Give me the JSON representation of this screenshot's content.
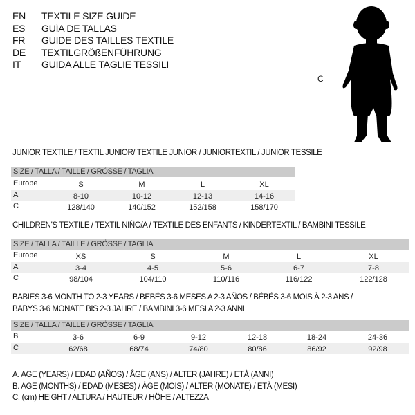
{
  "header": {
    "lines": [
      {
        "code": "EN",
        "text": "TEXTILE SIZE GUIDE"
      },
      {
        "code": "ES",
        "text": "GUÍA DE TALLAS"
      },
      {
        "code": "FR",
        "text": "GUIDE DES TAILLES TEXTILE"
      },
      {
        "code": "DE",
        "text": "TEXTILGRÖßENFÜHRUNG"
      },
      {
        "code": "IT",
        "text": "GUIDA ALLE TAGLIE TESSILI"
      }
    ]
  },
  "figure": {
    "label": "C",
    "icon": "child-silhouette"
  },
  "tables": [
    {
      "title": "JUNIOR TEXTILE / TEXTIL JUNIOR/ TEXTILE JUNIOR / JUNIORTEXTIL / JUNIOR TESSILE",
      "header": "SIZE / TALLA / TAILLE / GRÖSSE / TAGLIA",
      "rows": [
        {
          "label": "Europe",
          "values": [
            "S",
            "M",
            "L",
            "XL"
          ]
        },
        {
          "label": "A",
          "values": [
            "8-10",
            "10-12",
            "12-13",
            "14-16"
          ]
        },
        {
          "label": "C",
          "values": [
            "128/140",
            "140/152",
            "152/158",
            "158/170"
          ]
        }
      ]
    },
    {
      "title": "CHILDREN'S TEXTILE / TEXTIL NIÑO/A / TEXTILE DES ENFANTS / KINDERTEXTIL / BAMBINI TESSILE",
      "header": "SIZE / TALLA / TAILLE / GRÖSSE / TAGLIA",
      "rows": [
        {
          "label": "Europe",
          "values": [
            "XS",
            "S",
            "M",
            "L",
            "XL"
          ]
        },
        {
          "label": "A",
          "values": [
            "3-4",
            "4-5",
            "5-6",
            "6-7",
            "7-8"
          ]
        },
        {
          "label": "C",
          "values": [
            "98/104",
            "104/110",
            "110/116",
            "116/122",
            "122/128"
          ]
        }
      ]
    },
    {
      "title": "BABIES 3-6 MONTH TO 2-3 YEARS / BEBÉS 3-6 MESES A 2-3 AÑOS / BÉBÉS 3-6 MOIS À 2-3 ANS /",
      "title2": "BABYS 3-6 MONATE BIS 2-3 JAHRE / BAMBINI 3-6 MESI A 2-3 ANNI",
      "header": "SIZE / TALLA / TAILLE / GRÖSSE / TAGLIA",
      "rows": [
        {
          "label": "B",
          "values": [
            "3-6",
            "6-9",
            "9-12",
            "12-18",
            "18-24",
            "24-36"
          ]
        },
        {
          "label": "C",
          "values": [
            "62/68",
            "68/74",
            "74/80",
            "80/86",
            "86/92",
            "92/98"
          ]
        }
      ]
    }
  ],
  "notes": [
    "A. AGE (YEARS) / EDAD (AÑOS) / ÂGE (ANS) / ALTER (JAHRE) / ETÀ (ANNI)",
    "B. AGE (MONTHS) / EDAD (MESES) / ÂGE (MOIS) / ALTER (MONATE) / ETÀ (MESI)",
    "C. (cm) HEIGHT / ALTURA / HAUTEUR / HÖHE / ALTEZZA"
  ]
}
